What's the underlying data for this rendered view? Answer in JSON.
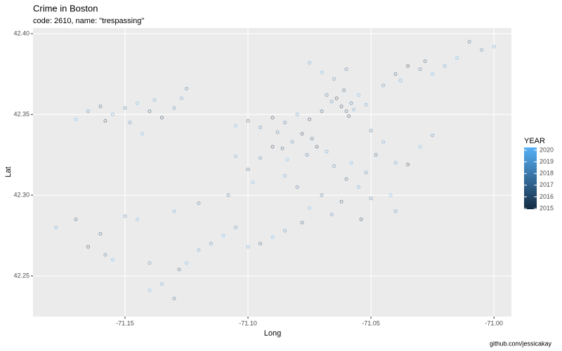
{
  "chart_data": {
    "type": "scatter",
    "title": "Crime in Boston",
    "subtitle": "code: 2610, name: \"trespassing\"",
    "x_label": "Long",
    "y_label": "Lat",
    "caption": "github.com/jessicakay",
    "xlim": [
      -71.1874,
      -70.9929
    ],
    "ylim": [
      42.2248,
      42.4035
    ],
    "xticks": [
      -71.15,
      {
        "value": -71.1,
        "label": "-71.10"
      },
      -71.05,
      {
        "value": -71,
        "label": "-71.00"
      }
    ],
    "yticks": [
      42.25,
      {
        "value": 42.3,
        "label": "42.30"
      },
      42.35,
      {
        "value": 42.4,
        "label": "42.40"
      }
    ],
    "grid": true,
    "colorbar": {
      "title": "YEAR",
      "limits": [
        2015,
        2020
      ],
      "ticks": [
        2015,
        2016,
        2017,
        2018,
        2019,
        2020
      ],
      "low": "#132B43",
      "high": "#56B1F7"
    },
    "x": [
      -71.165,
      -71.16,
      -71.155,
      -71.15,
      -71.145,
      -71.14,
      -71.135,
      -71.13,
      -71.127,
      -71.125,
      -71.17,
      -71.158,
      -71.148,
      -71.138,
      -71.143,
      -71.062,
      -71.06,
      -71.058,
      -71.064,
      -71.057,
      -71.061,
      -71.066,
      -71.055,
      -71.059,
      -71.068,
      -71.07,
      -71.052,
      -71.09,
      -71.085,
      -71.08,
      -71.095,
      -71.1,
      -71.075,
      -71.105,
      -71.088,
      -71.078,
      -71.074,
      -71.072,
      -71.082,
      -71.086,
      -71.09,
      -71.068,
      -71.076,
      -71.084,
      -71.095,
      -71.1,
      -71.105,
      -71.098,
      -71.108,
      -71.065,
      -71.06,
      -71.055,
      -71.07,
      -71.062,
      -71.058,
      -71.052,
      -71.048,
      -71.045,
      -71.05,
      -71.054,
      -71.066,
      -71.075,
      -71.08,
      -71.085,
      -71.078,
      -71.085,
      -71.09,
      -71.095,
      -71.1,
      -71.05,
      -71.042,
      -71.04,
      -71.035,
      -71.04,
      -71.03,
      -71.025,
      -71.04,
      -71.035,
      -71.03,
      -71.038,
      -71.028,
      -71.025,
      -71.045,
      -71.02,
      -71.015,
      -71.005,
      -71.0,
      -71.01,
      -71.065,
      -71.07,
      -71.06,
      -71.075,
      -71.15,
      -71.145,
      -71.13,
      -71.12,
      -71.16,
      -71.165,
      -71.158,
      -71.155,
      -71.14,
      -71.128,
      -71.125,
      -71.12,
      -71.115,
      -71.135,
      -71.13,
      -71.14,
      -71.178,
      -71.17,
      -71.11,
      -71.105
    ],
    "values": [
      42.352,
      42.355,
      42.35,
      42.354,
      42.357,
      42.352,
      42.348,
      42.354,
      42.36,
      42.366,
      42.347,
      42.346,
      42.345,
      42.359,
      42.338,
      42.355,
      42.352,
      42.357,
      42.36,
      42.353,
      42.365,
      42.358,
      42.362,
      42.349,
      42.362,
      42.352,
      42.356,
      42.348,
      42.345,
      42.35,
      42.342,
      42.346,
      42.347,
      42.343,
      42.339,
      42.338,
      42.335,
      42.33,
      42.333,
      42.329,
      42.33,
      42.327,
      42.325,
      42.322,
      42.323,
      42.316,
      42.324,
      42.308,
      42.3,
      42.318,
      42.31,
      42.305,
      42.3,
      42.296,
      42.32,
      42.314,
      42.325,
      42.333,
      42.34,
      42.285,
      42.288,
      42.292,
      42.305,
      42.312,
      42.283,
      42.278,
      42.274,
      42.27,
      42.268,
      42.298,
      42.3,
      42.29,
      42.319,
      42.32,
      42.33,
      42.337,
      42.375,
      42.38,
      42.378,
      42.371,
      42.383,
      42.375,
      42.368,
      42.38,
      42.385,
      42.39,
      42.392,
      42.395,
      42.372,
      42.376,
      42.378,
      42.382,
      42.287,
      42.285,
      42.29,
      42.295,
      42.276,
      42.268,
      42.263,
      42.26,
      42.258,
      42.254,
      42.258,
      42.266,
      42.27,
      42.245,
      42.236,
      42.241,
      42.28,
      42.285,
      42.275,
      42.28
    ],
    "year": [
      2018,
      2016,
      2019,
      2017,
      2020,
      2016,
      2015,
      2018,
      2019,
      2017,
      2020,
      2015,
      2018,
      2019,
      2020,
      2015,
      2016,
      2017,
      2015,
      2019,
      2016,
      2018,
      2020,
      2015,
      2017,
      2016,
      2019,
      2015,
      2017,
      2019,
      2018,
      2016,
      2015,
      2020,
      2017,
      2015,
      2016,
      2015,
      2018,
      2016,
      2015,
      2019,
      2017,
      2020,
      2018,
      2016,
      2019,
      2020,
      2017,
      2018,
      2016,
      2019,
      2017,
      2015,
      2020,
      2018,
      2016,
      2019,
      2017,
      2015,
      2018,
      2020,
      2017,
      2019,
      2016,
      2018,
      2020,
      2016,
      2019,
      2017,
      2020,
      2018,
      2015,
      2019,
      2020,
      2018,
      2016,
      2015,
      2017,
      2019,
      2016,
      2020,
      2018,
      2019,
      2020,
      2018,
      2019,
      2017,
      2018,
      2020,
      2017,
      2019,
      2018,
      2020,
      2019,
      2017,
      2016,
      2015,
      2017,
      2020,
      2018,
      2016,
      2020,
      2019,
      2018,
      2019,
      2017,
      2020,
      2019,
      2016,
      2020,
      2018
    ]
  }
}
